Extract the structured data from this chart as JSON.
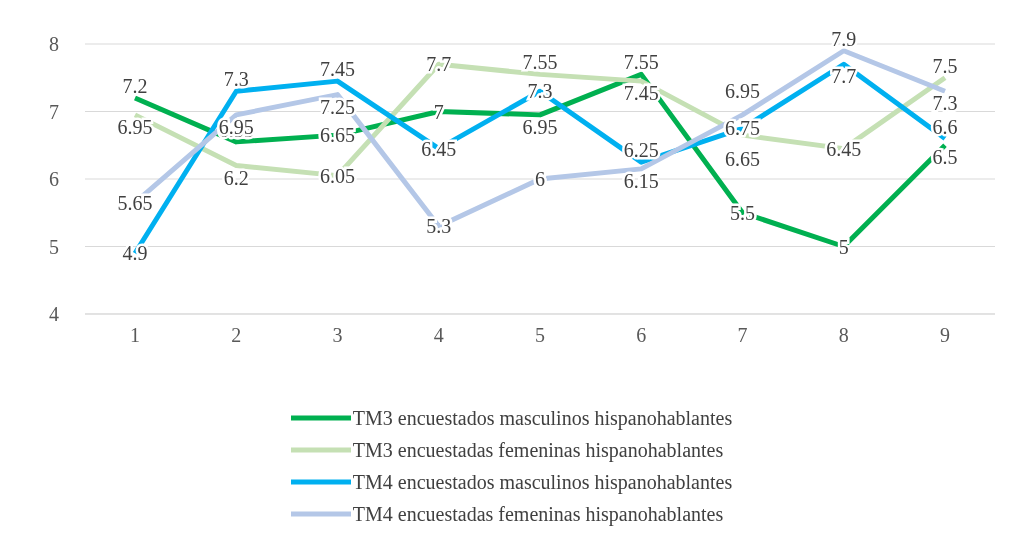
{
  "chart_data": {
    "type": "line",
    "categories": [
      "1",
      "2",
      "3",
      "4",
      "5",
      "6",
      "7",
      "8",
      "9"
    ],
    "series": [
      {
        "name": "TM3 encuestados masculinos hispanohablantes",
        "color": "#00b050",
        "values": [
          7.2,
          6.55,
          6.65,
          7,
          6.95,
          7.55,
          5.5,
          5,
          6.5
        ]
      },
      {
        "name": "TM3 encuestadas femeninas hispanohablantes",
        "color": "#c5e0b4",
        "values": [
          6.95,
          6.2,
          6.05,
          7.7,
          7.55,
          7.45,
          6.65,
          6.45,
          7.5
        ]
      },
      {
        "name": "TM4 encuestados masculinos hispanohablantes",
        "color": "#00b0f0",
        "values": [
          4.9,
          7.3,
          7.45,
          6.45,
          7.3,
          6.25,
          6.75,
          7.7,
          6.6
        ]
      },
      {
        "name": "TM4 encuestadas femeninas hispanohablantes",
        "color": "#b4c7e7",
        "values": [
          5.65,
          6.95,
          7.25,
          5.3,
          6,
          6.15,
          6.95,
          7.9,
          7.3
        ]
      }
    ],
    "ylim": [
      4,
      8
    ],
    "yticks": [
      4,
      5,
      6,
      7,
      8
    ],
    "grid": "y",
    "legend": "bottom",
    "data_labels": true,
    "marker": "none",
    "line_style": "solid"
  }
}
